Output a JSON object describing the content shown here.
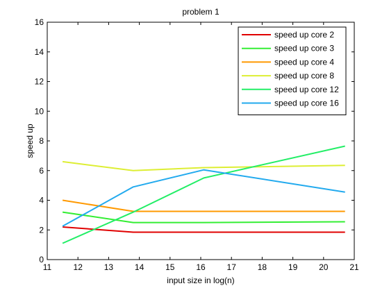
{
  "chart_data": {
    "type": "line",
    "title": "problem 1",
    "xlabel": "input size in log(n)",
    "ylabel": "speed up",
    "xlim": [
      11,
      21
    ],
    "ylim": [
      0,
      16
    ],
    "xticks": [
      11,
      12,
      13,
      14,
      15,
      16,
      17,
      18,
      19,
      20,
      21
    ],
    "yticks": [
      0,
      2,
      4,
      6,
      8,
      10,
      12,
      14,
      16
    ],
    "grid": false,
    "legend_position": "top-right",
    "x": [
      11.5,
      13.8,
      16.1,
      20.7
    ],
    "series": [
      {
        "name": "speed up core 2",
        "color": "#e00000",
        "values": [
          2.2,
          1.85,
          1.85,
          1.85
        ]
      },
      {
        "name": "speed up core 3",
        "color": "#33ee33",
        "values": [
          3.2,
          2.5,
          2.5,
          2.55
        ]
      },
      {
        "name": "speed up core 4",
        "color": "#ff9900",
        "values": [
          4.0,
          3.25,
          3.25,
          3.25
        ]
      },
      {
        "name": "speed up core 8",
        "color": "#ddee33",
        "values": [
          6.6,
          6.0,
          6.2,
          6.35
        ]
      },
      {
        "name": "speed up core 12",
        "color": "#22ee66",
        "values": [
          1.1,
          3.2,
          5.5,
          7.65
        ]
      },
      {
        "name": "speed up core 16",
        "color": "#22aaee",
        "values": [
          2.25,
          4.9,
          6.05,
          4.55
        ]
      }
    ]
  }
}
